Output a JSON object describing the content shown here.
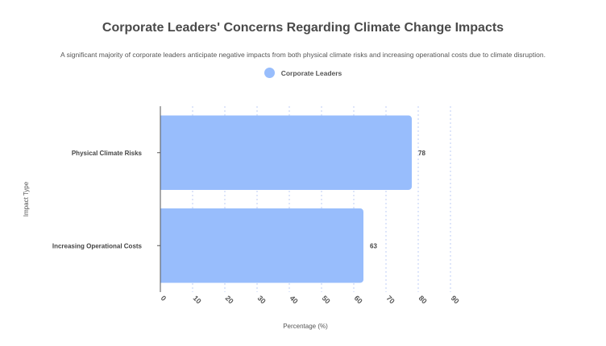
{
  "chart_data": {
    "type": "bar",
    "orientation": "horizontal",
    "title": "Corporate Leaders' Concerns Regarding Climate Change Impacts",
    "subtitle": "A significant majority of corporate leaders anticipate negative impacts from both physical climate risks and increasing operational costs due to climate disruption.",
    "categories": [
      "Physical Climate Risks",
      "Increasing Operational Costs"
    ],
    "series": [
      {
        "name": "Corporate Leaders",
        "values": [
          78,
          63
        ],
        "color": "#98bdfc"
      }
    ],
    "xlabel": "Percentage (%)",
    "ylabel": "Impact Type",
    "xlim": [
      0,
      90
    ],
    "xticks": [
      0,
      10,
      20,
      30,
      40,
      50,
      60,
      70,
      80,
      90
    ],
    "grid": "vertical-dashed",
    "legend": "top-center"
  }
}
